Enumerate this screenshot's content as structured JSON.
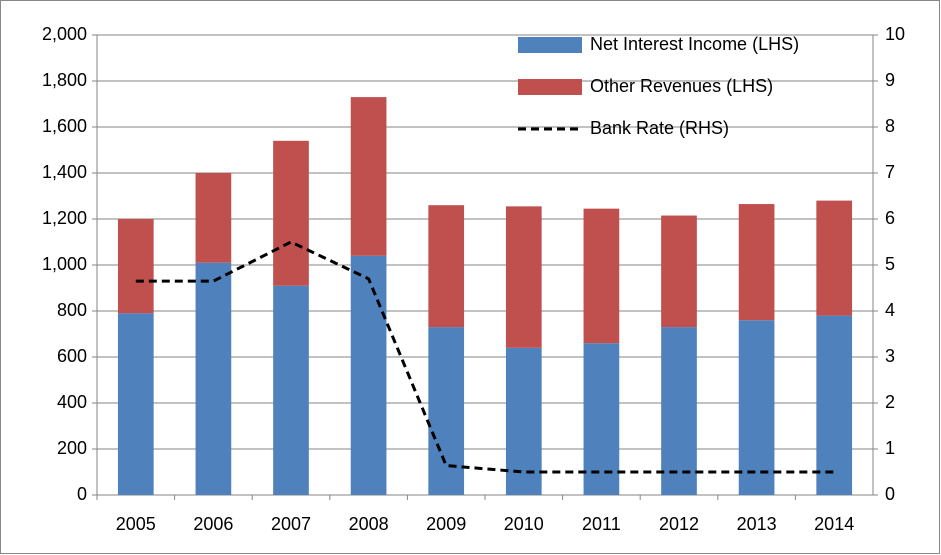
{
  "chart_data": {
    "type": "bar",
    "categories": [
      "2005",
      "2006",
      "2007",
      "2008",
      "2009",
      "2010",
      "2011",
      "2012",
      "2013",
      "2014"
    ],
    "series": [
      {
        "name": "Net Interest Income (LHS)",
        "type": "bar",
        "color": "#4f81bd",
        "values": [
          790,
          1010,
          910,
          1040,
          730,
          640,
          660,
          730,
          760,
          780
        ]
      },
      {
        "name": "Other Revenues (LHS)",
        "type": "bar",
        "color": "#c0504d",
        "values": [
          410,
          390,
          630,
          690,
          530,
          615,
          585,
          485,
          505,
          500
        ]
      },
      {
        "name": "Bank Rate (RHS)",
        "type": "line",
        "axis": "y2",
        "color": "#000000",
        "dashed": true,
        "values": [
          4.65,
          4.65,
          5.5,
          4.7,
          0.64,
          0.5,
          0.5,
          0.5,
          0.5,
          0.5
        ]
      }
    ],
    "stacked": true,
    "ylim": [
      0,
      2000
    ],
    "yticks": [
      0,
      200,
      400,
      600,
      800,
      {
        "value": 1000,
        "label": "1,000"
      },
      {
        "value": 1200,
        "label": "1,200"
      },
      {
        "value": 1400,
        "label": "1,400"
      },
      {
        "value": 1600,
        "label": "1,600"
      },
      {
        "value": 1800,
        "label": "1,800"
      },
      {
        "value": 2000,
        "label": "2,000"
      }
    ],
    "y2lim": [
      0,
      10
    ],
    "y2ticks": [
      0,
      1,
      2,
      3,
      4,
      5,
      6,
      7,
      8,
      9,
      10
    ],
    "grid": true,
    "legend": "top-right"
  }
}
